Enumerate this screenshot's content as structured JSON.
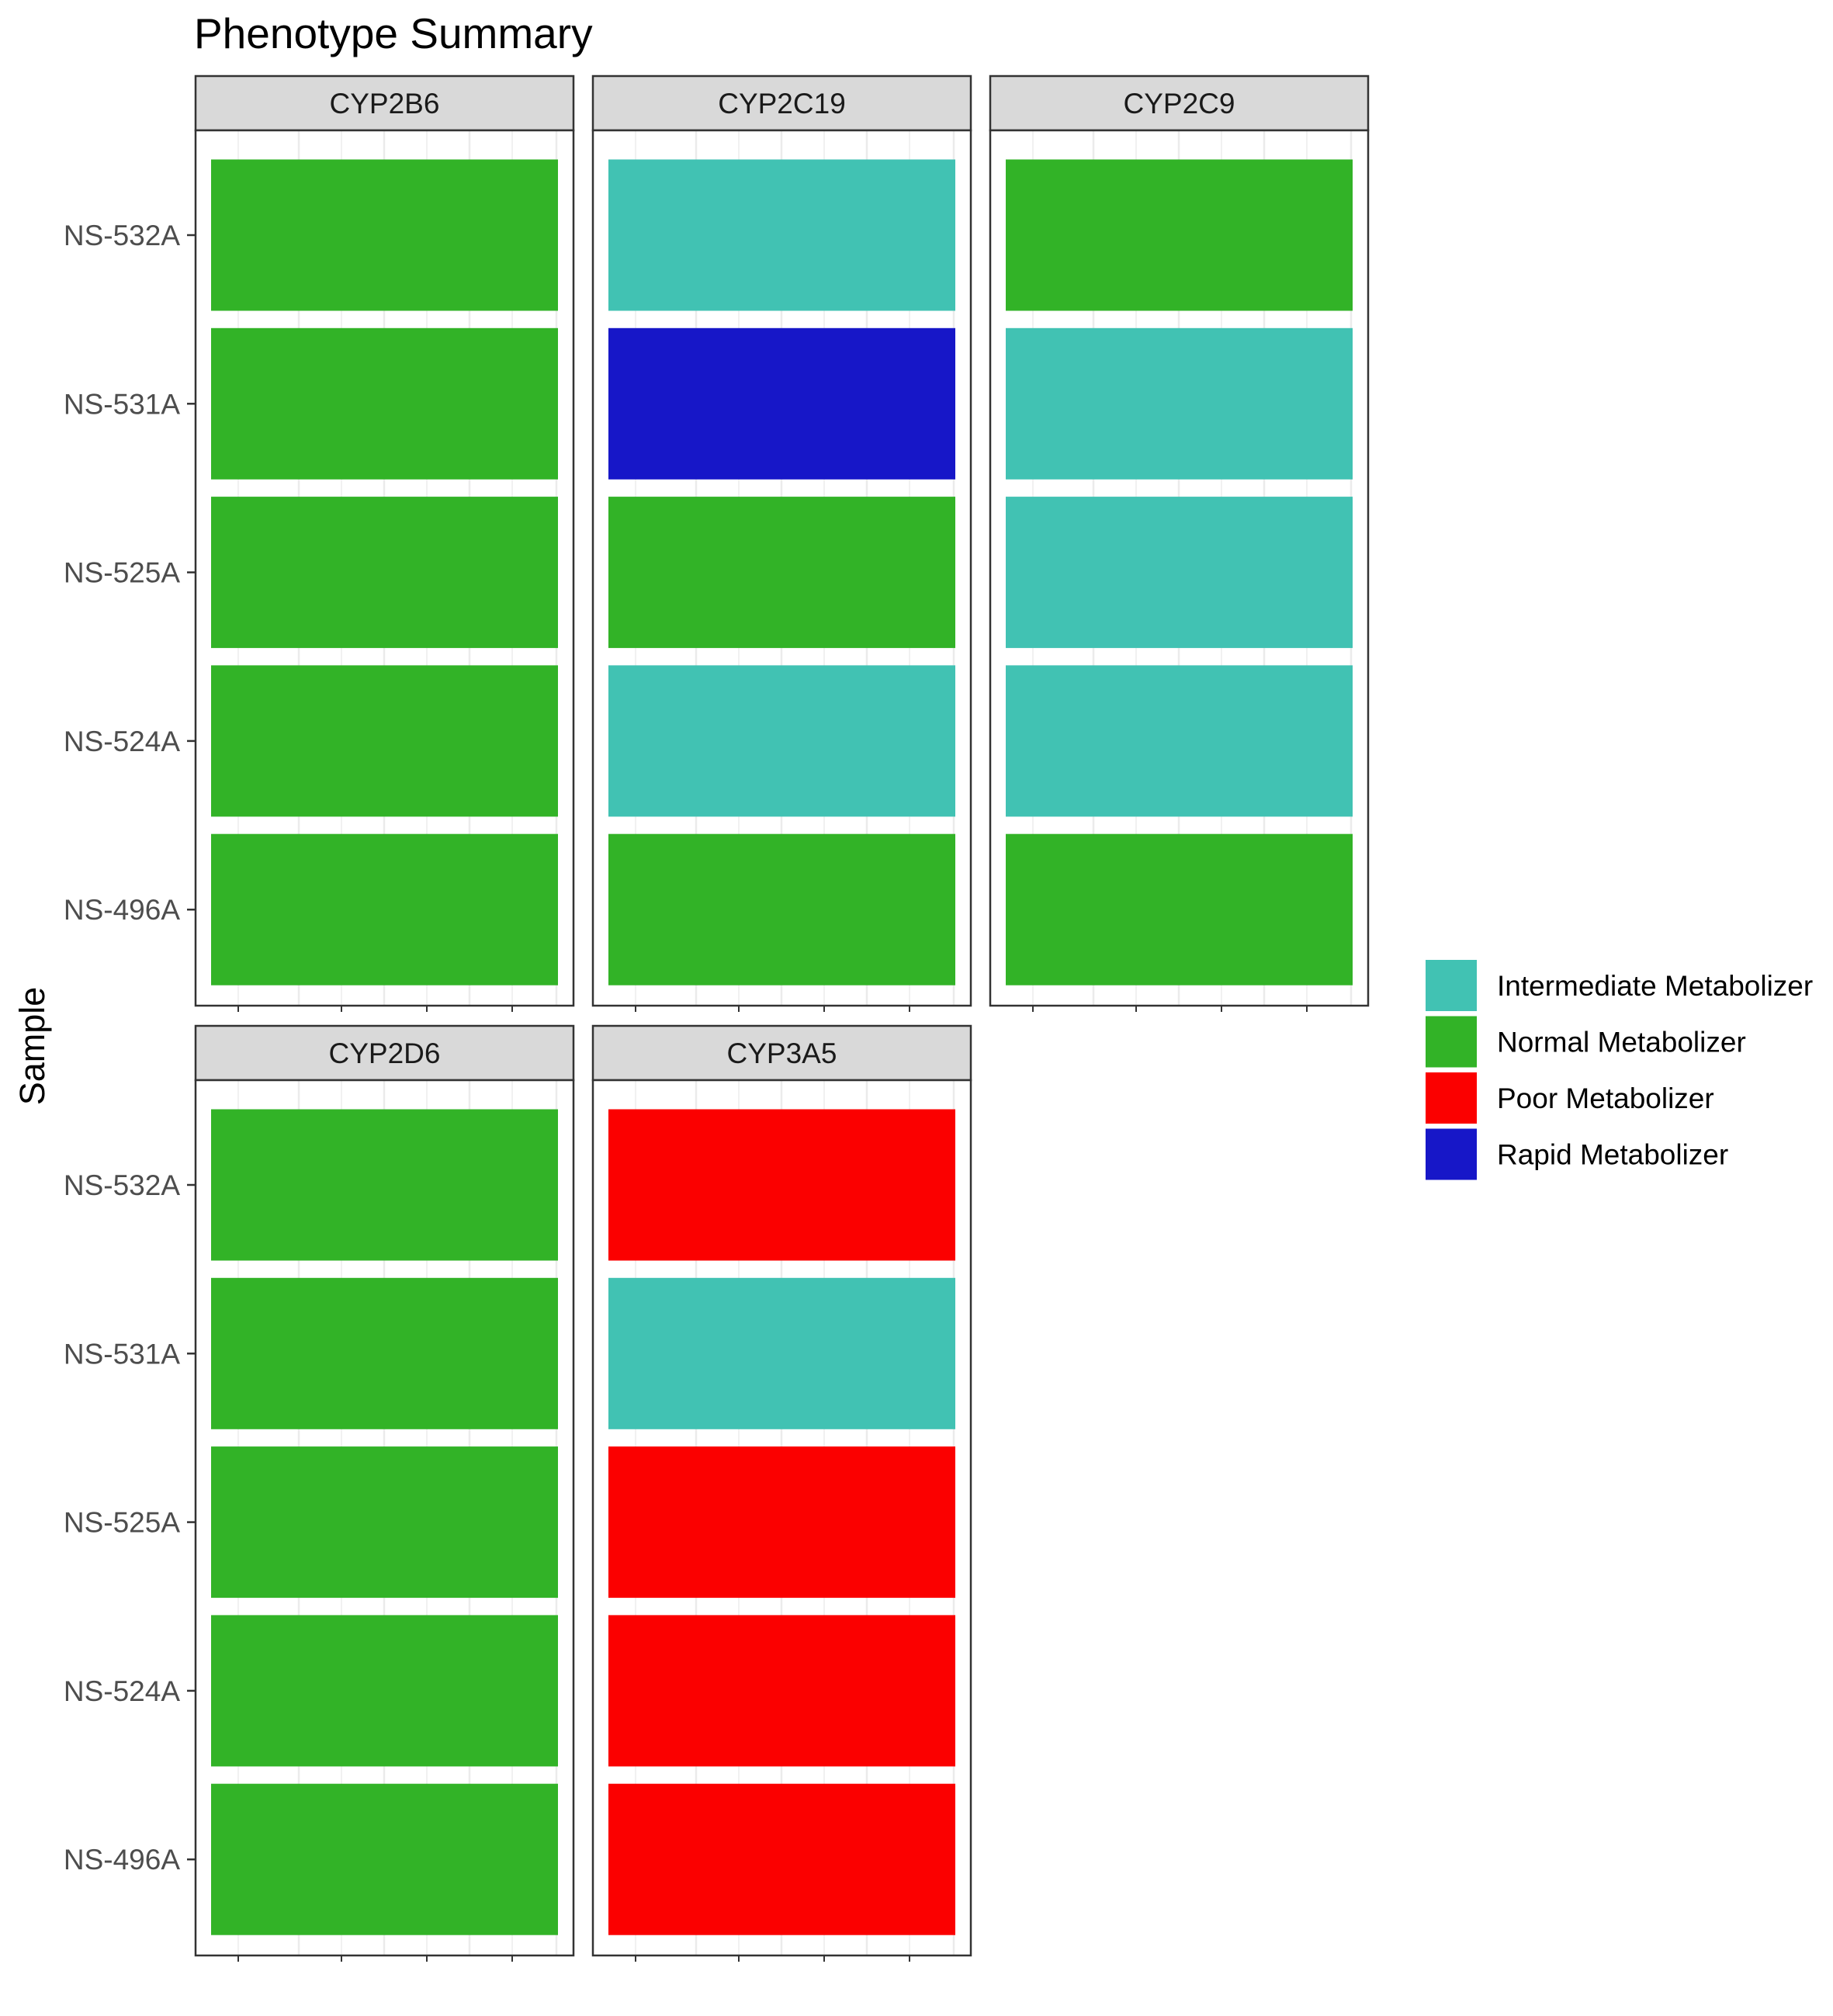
{
  "chart_data": {
    "type": "heatmap",
    "title": "Phenotype Summary",
    "xlabel": "",
    "ylabel": "Sample",
    "samples": [
      "NS-532A",
      "NS-531A",
      "NS-525A",
      "NS-524A",
      "NS-496A"
    ],
    "facets": [
      {
        "gene": "CYP2B6",
        "phenotypes": [
          "Normal Metabolizer",
          "Normal Metabolizer",
          "Normal Metabolizer",
          "Normal Metabolizer",
          "Normal Metabolizer"
        ]
      },
      {
        "gene": "CYP2C19",
        "phenotypes": [
          "Intermediate Metabolizer",
          "Rapid Metabolizer",
          "Normal Metabolizer",
          "Intermediate Metabolizer",
          "Normal Metabolizer"
        ]
      },
      {
        "gene": "CYP2C9",
        "phenotypes": [
          "Normal Metabolizer",
          "Intermediate Metabolizer",
          "Intermediate Metabolizer",
          "Intermediate Metabolizer",
          "Normal Metabolizer"
        ]
      },
      {
        "gene": "CYP2D6",
        "phenotypes": [
          "Normal Metabolizer",
          "Normal Metabolizer",
          "Normal Metabolizer",
          "Normal Metabolizer",
          "Normal Metabolizer"
        ]
      },
      {
        "gene": "CYP3A5",
        "phenotypes": [
          "Poor Metabolizer",
          "Intermediate Metabolizer",
          "Poor Metabolizer",
          "Poor Metabolizer",
          "Poor Metabolizer"
        ]
      }
    ],
    "legend": {
      "position": "right",
      "items": [
        {
          "label": "Intermediate Metabolizer",
          "color": "#41C2B3"
        },
        {
          "label": "Normal Metabolizer",
          "color": "#32B327"
        },
        {
          "label": "Poor Metabolizer",
          "color": "#FB0000"
        },
        {
          "label": "Rapid Metabolizer",
          "color": "#1717C8"
        }
      ]
    },
    "grid": true
  }
}
